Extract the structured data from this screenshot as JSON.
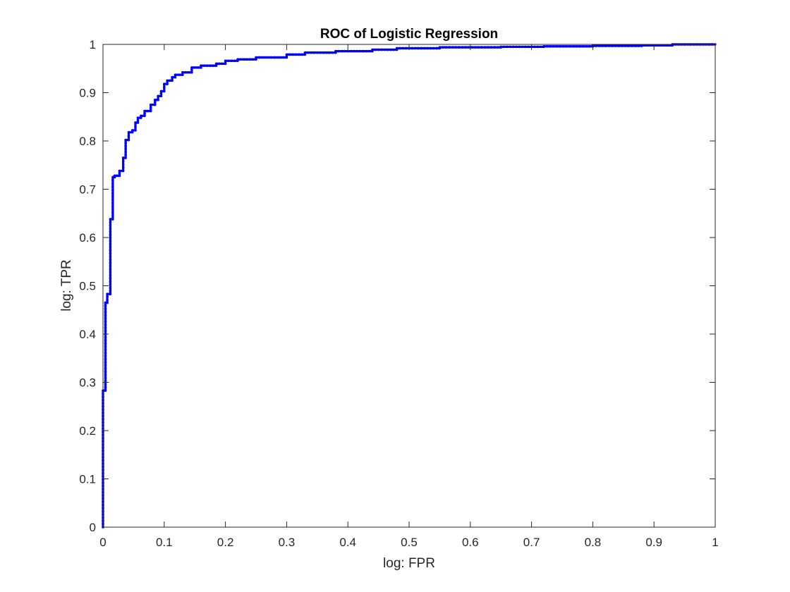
{
  "chart_data": {
    "type": "line",
    "title": "ROC of Logistic Regression",
    "xlabel": "log: FPR",
    "ylabel": "log: TPR",
    "xlim": [
      0,
      1
    ],
    "ylim": [
      0,
      1
    ],
    "xticks": [
      0,
      0.1,
      0.2,
      0.3,
      0.4,
      0.5,
      0.6,
      0.7,
      0.8,
      0.9,
      1
    ],
    "yticks": [
      0,
      0.1,
      0.2,
      0.3,
      0.4,
      0.5,
      0.6,
      0.7,
      0.8,
      0.9,
      1
    ],
    "xtick_labels": [
      "0",
      "0.1",
      "0.2",
      "0.3",
      "0.4",
      "0.5",
      "0.6",
      "0.7",
      "0.8",
      "0.9",
      "1"
    ],
    "ytick_labels": [
      "0",
      "0.1",
      "0.2",
      "0.3",
      "0.4",
      "0.5",
      "0.6",
      "0.7",
      "0.8",
      "0.9",
      "1"
    ],
    "grid": false,
    "line_color": "#0000ff",
    "series": [
      {
        "style": "step",
        "x": [
          0,
          0,
          0.004,
          0.004,
          0.007,
          0.007,
          0.012,
          0.012,
          0.016,
          0.016,
          0.019,
          0.019,
          0.027,
          0.027,
          0.033,
          0.033,
          0.037,
          0.037,
          0.042,
          0.042,
          0.048,
          0.048,
          0.053,
          0.053,
          0.057,
          0.057,
          0.062,
          0.062,
          0.068,
          0.068,
          0.078,
          0.078,
          0.085,
          0.085,
          0.09,
          0.09,
          0.095,
          0.095,
          0.1,
          0.1,
          0.105,
          0.105,
          0.113,
          0.113,
          0.118,
          0.118,
          0.13,
          0.13,
          0.145,
          0.145,
          0.16,
          0.16,
          0.185,
          0.185,
          0.2,
          0.2,
          0.22,
          0.22,
          0.25,
          0.25,
          0.3,
          0.3,
          0.33,
          0.33,
          0.38,
          0.38,
          0.44,
          0.44,
          0.48,
          0.48,
          0.55,
          0.55,
          0.65,
          0.65,
          0.72,
          0.72,
          0.8,
          0.8,
          0.88,
          0.88,
          0.93,
          0.93,
          1
        ],
        "y": [
          0,
          0.283,
          0.283,
          0.465,
          0.465,
          0.483,
          0.483,
          0.638,
          0.638,
          0.725,
          0.725,
          0.728,
          0.728,
          0.738,
          0.738,
          0.765,
          0.765,
          0.802,
          0.802,
          0.818,
          0.818,
          0.822,
          0.822,
          0.838,
          0.838,
          0.848,
          0.848,
          0.852,
          0.852,
          0.862,
          0.862,
          0.875,
          0.875,
          0.885,
          0.885,
          0.893,
          0.893,
          0.903,
          0.903,
          0.918,
          0.918,
          0.925,
          0.925,
          0.932,
          0.932,
          0.937,
          0.937,
          0.942,
          0.942,
          0.952,
          0.952,
          0.956,
          0.956,
          0.96,
          0.96,
          0.966,
          0.966,
          0.969,
          0.969,
          0.973,
          0.973,
          0.979,
          0.979,
          0.983,
          0.983,
          0.986,
          0.986,
          0.989,
          0.989,
          0.992,
          0.992,
          0.994,
          0.994,
          0.995,
          0.995,
          0.996,
          0.996,
          0.997,
          0.997,
          0.998,
          0.998,
          1,
          1
        ]
      }
    ]
  }
}
